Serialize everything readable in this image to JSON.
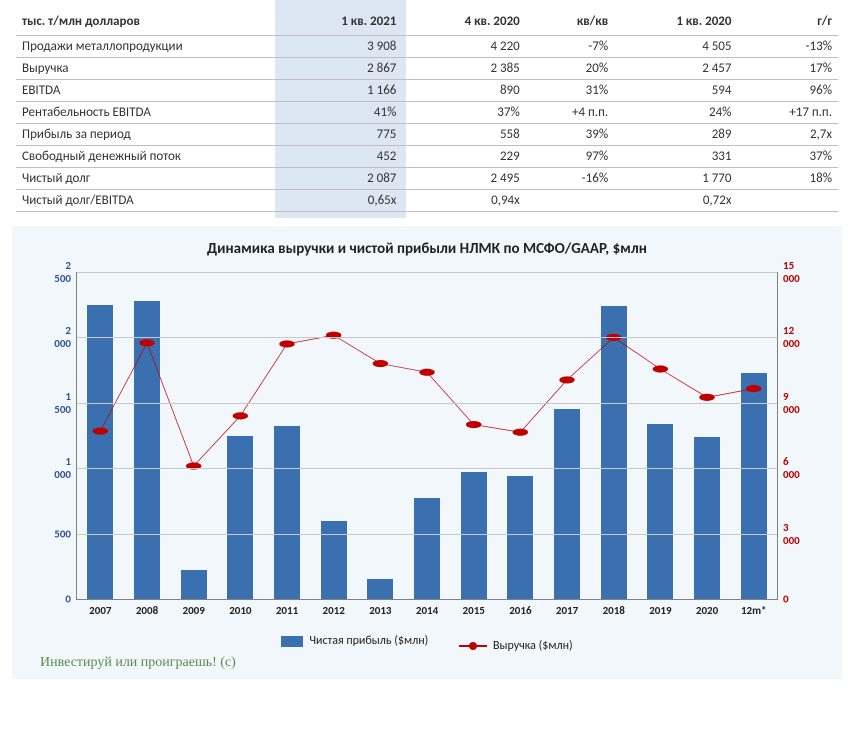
{
  "table": {
    "header_label": "тыс. т/млн долларов",
    "columns": [
      "1 кв. 2021",
      "4 кв. 2020",
      "кв/кв",
      "1 кв. 2020",
      "г/г"
    ],
    "highlight_col_index": 0,
    "rows": [
      {
        "label": "Продажи металлопродукции",
        "cells": [
          "3 908",
          "4 220",
          "-7%",
          "4 505",
          "-13%"
        ]
      },
      {
        "label": "Выручка",
        "cells": [
          "2 867",
          "2 385",
          "20%",
          "2 457",
          "17%"
        ]
      },
      {
        "label": "EBITDA",
        "cells": [
          "1 166",
          "890",
          "31%",
          "594",
          "96%"
        ]
      },
      {
        "label": "Рентабельность EBITDA",
        "cells": [
          "41%",
          "37%",
          "+4 п.п.",
          "24%",
          "+17 п.п."
        ]
      },
      {
        "label": "Прибыль за период",
        "cells": [
          "775",
          "558",
          "39%",
          "289",
          "2,7х"
        ]
      },
      {
        "label": "Свободный денежный поток",
        "cells": [
          "452",
          "229",
          "97%",
          "331",
          "37%"
        ]
      },
      {
        "label": "Чистый долг",
        "cells": [
          "2 087",
          "2 495",
          "-16%",
          "1 770",
          "18%"
        ]
      },
      {
        "label": "Чистый долг/EBITDA",
        "cells": [
          "0,65x",
          "0,94х",
          "",
          "0,72х",
          ""
        ]
      }
    ],
    "highlight_bg": "#dce7f3",
    "border_color": "#bfbfbf"
  },
  "chart": {
    "title": "Динамика выручки и чистой прибыли НЛМК по МСФО/GAAP, $млн",
    "categories": [
      "2007",
      "2008",
      "2009",
      "2010",
      "2011",
      "2012",
      "2013",
      "2014",
      "2015",
      "2016",
      "2017",
      "2018",
      "2019",
      "2020",
      "12m*"
    ],
    "bars": {
      "label": "Чистая прибыль ($млн)",
      "values": [
        2250,
        2280,
        220,
        1250,
        1320,
        600,
        150,
        770,
        970,
        940,
        1450,
        2240,
        1340,
        1240,
        1730
      ],
      "color": "#3a6fb0",
      "ymin": 0,
      "ymax": 2500,
      "ystep": 500
    },
    "line": {
      "label": "Выручка ($млн)",
      "values": [
        7700,
        11750,
        6100,
        8400,
        11700,
        12100,
        10800,
        10400,
        8000,
        7650,
        10050,
        12000,
        10550,
        9250,
        9650
      ],
      "color": "#c00000",
      "marker_fill": "#c00000",
      "ymin": 0,
      "ymax": 15000,
      "ystep": 3000
    },
    "plot_bg": "#f2f7fb",
    "grid_color": "#c9c9c9",
    "axis_color": "#808080",
    "left_tick_color": "#2f5597",
    "right_tick_color": "#c00000",
    "category_font_weight": "700"
  },
  "footer": "Инвестируй или проиграешь! (с)"
}
